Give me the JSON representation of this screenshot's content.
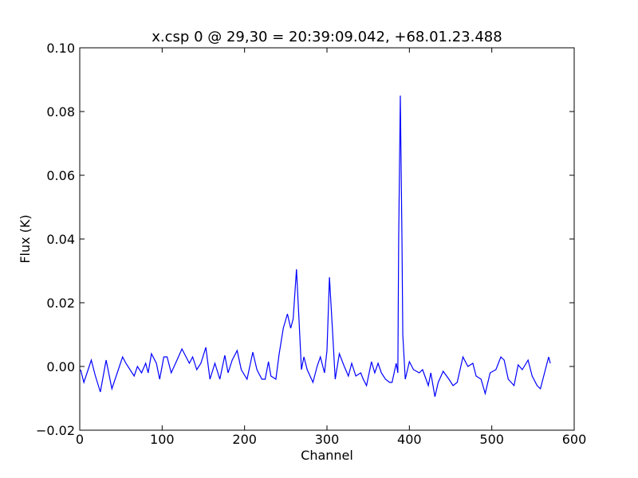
{
  "chart_data": {
    "type": "line",
    "title": "x.csp 0 @ 29,30 = 20:39:09.042, +68.01.23.488",
    "xlabel": "Channel",
    "ylabel": "Flux (K)",
    "color": "#0000ff",
    "x": [
      1,
      5,
      14,
      19,
      25,
      32,
      39,
      52,
      56,
      66,
      70,
      75,
      80,
      83,
      87,
      93,
      97,
      102,
      106,
      111,
      118,
      124,
      129,
      133,
      137,
      142,
      147,
      153,
      158,
      164,
      170,
      176,
      180,
      185,
      191,
      196,
      203,
      210,
      215,
      221,
      225,
      229,
      232,
      238,
      242,
      247,
      252,
      256,
      259,
      263,
      266,
      269,
      272,
      276,
      283,
      288,
      292,
      297,
      300,
      303,
      307,
      310,
      315,
      321,
      326,
      330,
      335,
      341,
      344,
      348,
      354,
      358,
      362,
      366,
      371,
      376,
      379,
      384,
      386,
      387,
      389,
      391,
      392,
      395,
      400,
      405,
      412,
      416,
      423,
      426,
      431,
      435,
      441,
      448,
      453,
      458,
      465,
      471,
      477,
      481,
      487,
      492,
      498,
      505,
      511,
      515,
      520,
      527,
      532,
      537,
      544,
      549,
      555,
      559,
      564,
      569,
      571
    ],
    "values": [
      -0.001,
      -0.005,
      0.002,
      -0.003,
      -0.008,
      0.002,
      -0.007,
      0.003,
      0.001,
      -0.003,
      0,
      -0.002,
      0.001,
      -0.002,
      0.004,
      0.001,
      -0.004,
      0.003,
      0.003,
      -0.002,
      0.002,
      0.0055,
      0.003,
      0.001,
      0.003,
      -0.001,
      0.001,
      0.006,
      -0.004,
      0.001,
      -0.004,
      0.0035,
      -0.002,
      0.002,
      0.005,
      -0.001,
      -0.004,
      0.0045,
      -0.001,
      -0.004,
      -0.004,
      0.0015,
      -0.003,
      -0.004,
      0.004,
      0.012,
      0.0165,
      0.012,
      0.015,
      0.0305,
      0.015,
      -0.001,
      0.003,
      -0.001,
      -0.005,
      0,
      0.003,
      -0.002,
      0.005,
      0.028,
      0.01,
      -0.004,
      0.004,
      0,
      -0.003,
      0.001,
      -0.003,
      -0.002,
      -0.004,
      -0.006,
      0.0015,
      -0.002,
      0.001,
      -0.002,
      -0.004,
      -0.005,
      -0.005,
      0.001,
      -0.002,
      0.04,
      0.085,
      0.04,
      0.01,
      -0.004,
      0.0015,
      -0.001,
      -0.002,
      -0.001,
      -0.006,
      -0.002,
      -0.0095,
      -0.005,
      -0.0015,
      -0.004,
      -0.006,
      -0.005,
      0.003,
      0,
      0.001,
      -0.003,
      -0.004,
      -0.0085,
      -0.002,
      -0.001,
      0.003,
      0.002,
      -0.004,
      -0.006,
      0.0005,
      -0.001,
      0.002,
      -0.003,
      -0.006,
      -0.007,
      -0.002,
      0.003,
      0.001
    ],
    "xlim": [
      0,
      600
    ],
    "xticks": [
      0,
      100,
      200,
      300,
      400,
      500,
      600
    ],
    "ylim": [
      -0.02,
      0.1
    ],
    "yticks": [
      {
        "value": -0.02,
        "label": "−0.02"
      },
      {
        "value": 0,
        "label": "0.00"
      },
      0.02,
      0.04,
      0.06,
      0.08,
      {
        "value": 0.1,
        "label": "0.10"
      }
    ]
  }
}
